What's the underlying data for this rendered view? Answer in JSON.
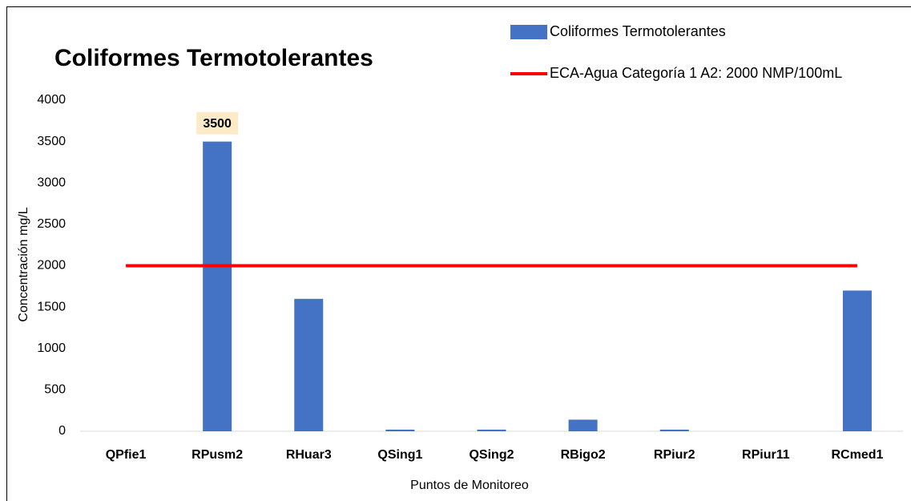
{
  "chart_data": {
    "type": "bar",
    "title": "Coliformes Termotolerantes",
    "y_label": "Concentración mg/L",
    "x_label": "Puntos de Monitoreo",
    "categories": [
      "QPfie1",
      "RPusm2",
      "RHuar3",
      "QSing1",
      "QSing2",
      "RBigo2",
      "RPiur2",
      "RPiur11",
      "RCmed1"
    ],
    "series": [
      {
        "name": "Coliformes Termotolerantes",
        "type": "bar",
        "color": "#4472c4",
        "values": [
          0,
          3500,
          1600,
          20,
          20,
          140,
          20,
          0,
          1700
        ],
        "value_labels": [
          null,
          "3500",
          null,
          null,
          null,
          null,
          null,
          null,
          null
        ]
      },
      {
        "name": "ECA-Agua Categoría 1 A2: 2000 NMP/100mL",
        "type": "line",
        "color": "#ff0000",
        "values": [
          2000,
          2000,
          2000,
          2000,
          2000,
          2000,
          2000,
          2000,
          2000
        ]
      }
    ],
    "ylim": [
      0,
      4000
    ],
    "yticks": [
      0,
      500,
      1000,
      1500,
      2000,
      2500,
      3000,
      3500,
      4000
    ],
    "grid": false,
    "legend": "top-right"
  }
}
